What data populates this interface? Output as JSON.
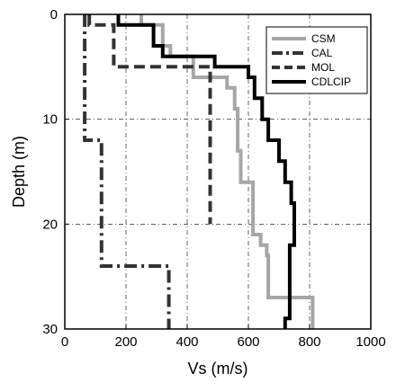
{
  "chart_data": {
    "type": "line",
    "xlabel": "Vs (m/s)",
    "ylabel": "Depth (m)",
    "xlim": [
      0,
      1000
    ],
    "ylim": [
      30,
      0
    ],
    "y_inverted": true,
    "grid": true,
    "legend_position": "top-right",
    "xticks": [
      0,
      200,
      400,
      600,
      800,
      1000
    ],
    "yticks": [
      0,
      10,
      20,
      30
    ],
    "xtick_labels": [
      "0",
      "200",
      "400",
      "600",
      "800",
      "1000"
    ],
    "ytick_labels": [
      "0",
      "10",
      "20",
      "30"
    ],
    "series": [
      {
        "name": "CSM",
        "color": "#a6a6a6",
        "dash": "solid",
        "points": [
          [
            250,
            0
          ],
          [
            250,
            1
          ],
          [
            320,
            1
          ],
          [
            320,
            3
          ],
          [
            345,
            3
          ],
          [
            345,
            4
          ],
          [
            420,
            4
          ],
          [
            420,
            6
          ],
          [
            530,
            6
          ],
          [
            530,
            7
          ],
          [
            555,
            7
          ],
          [
            555,
            9
          ],
          [
            565,
            9
          ],
          [
            565,
            13
          ],
          [
            575,
            13
          ],
          [
            575,
            16
          ],
          [
            615,
            16
          ],
          [
            615,
            21
          ],
          [
            640,
            21
          ],
          [
            640,
            22
          ],
          [
            660,
            22
          ],
          [
            660,
            23
          ],
          [
            665,
            23
          ],
          [
            665,
            27
          ],
          [
            810,
            27
          ],
          [
            810,
            30
          ]
        ]
      },
      {
        "name": "CAL",
        "color": "#333333",
        "dash": "dashdot",
        "points": [
          [
            65,
            0
          ],
          [
            65,
            12
          ],
          [
            120,
            12
          ],
          [
            120,
            24
          ],
          [
            340,
            24
          ],
          [
            340,
            30
          ]
        ]
      },
      {
        "name": "MOL",
        "color": "#333333",
        "dash": "dashed",
        "points": [
          [
            80,
            0
          ],
          [
            80,
            1
          ],
          [
            160,
            1
          ],
          [
            160,
            5
          ],
          [
            475,
            5
          ],
          [
            475,
            20
          ]
        ]
      },
      {
        "name": "CDLCIP",
        "color": "#000000",
        "dash": "solid",
        "points": [
          [
            175,
            0
          ],
          [
            175,
            1
          ],
          [
            290,
            1
          ],
          [
            290,
            3
          ],
          [
            320,
            3
          ],
          [
            320,
            4
          ],
          [
            490,
            4
          ],
          [
            490,
            5
          ],
          [
            600,
            5
          ],
          [
            600,
            6
          ],
          [
            620,
            6
          ],
          [
            620,
            8
          ],
          [
            645,
            8
          ],
          [
            645,
            10
          ],
          [
            665,
            10
          ],
          [
            665,
            12
          ],
          [
            700,
            12
          ],
          [
            700,
            14
          ],
          [
            720,
            14
          ],
          [
            720,
            16
          ],
          [
            740,
            16
          ],
          [
            740,
            18
          ],
          [
            750,
            18
          ],
          [
            750,
            22
          ],
          [
            735,
            22
          ],
          [
            735,
            29
          ],
          [
            720,
            29
          ],
          [
            720,
            30
          ]
        ]
      }
    ]
  }
}
